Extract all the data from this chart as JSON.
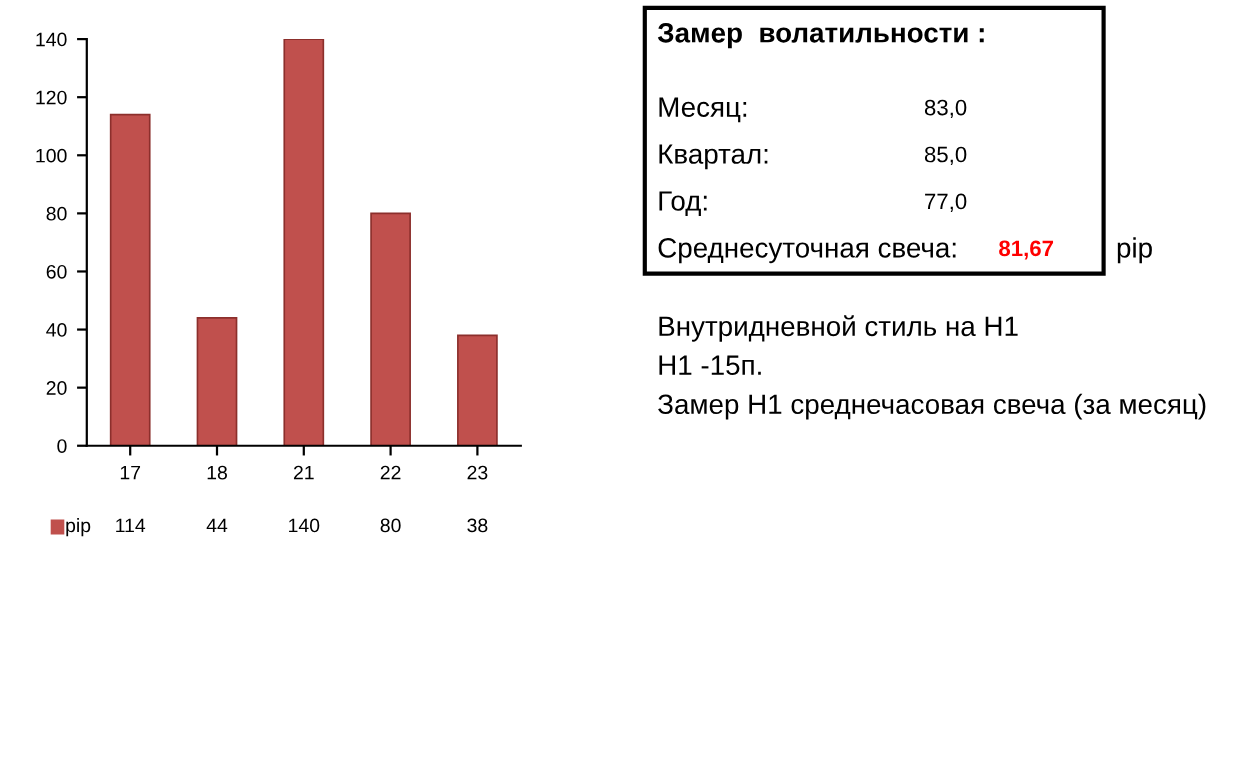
{
  "chart_data": {
    "type": "bar",
    "categories": [
      "17",
      "18",
      "21",
      "22",
      "23"
    ],
    "series": [
      {
        "name": "pip",
        "color": "#c0504d",
        "values": [
          114,
          44,
          140,
          80,
          38
        ]
      }
    ],
    "ylim": [
      0,
      140
    ],
    "yticks": [
      0,
      20,
      40,
      60,
      80,
      100,
      120,
      140
    ],
    "grid": false,
    "data_labels": true,
    "legend": "bottom",
    "annotations": [
      "Замер  волатильности :",
      "Месяц:",
      "83,0",
      "Квартал:",
      "85,0",
      "Год:",
      "77,0",
      "Среднесуточная свеча:",
      "81,67",
      "pip",
      "Внутридневной стиль на H1",
      "H1 -15п.",
      "Замер H1 среднечасовая свеча (за месяц)"
    ]
  }
}
